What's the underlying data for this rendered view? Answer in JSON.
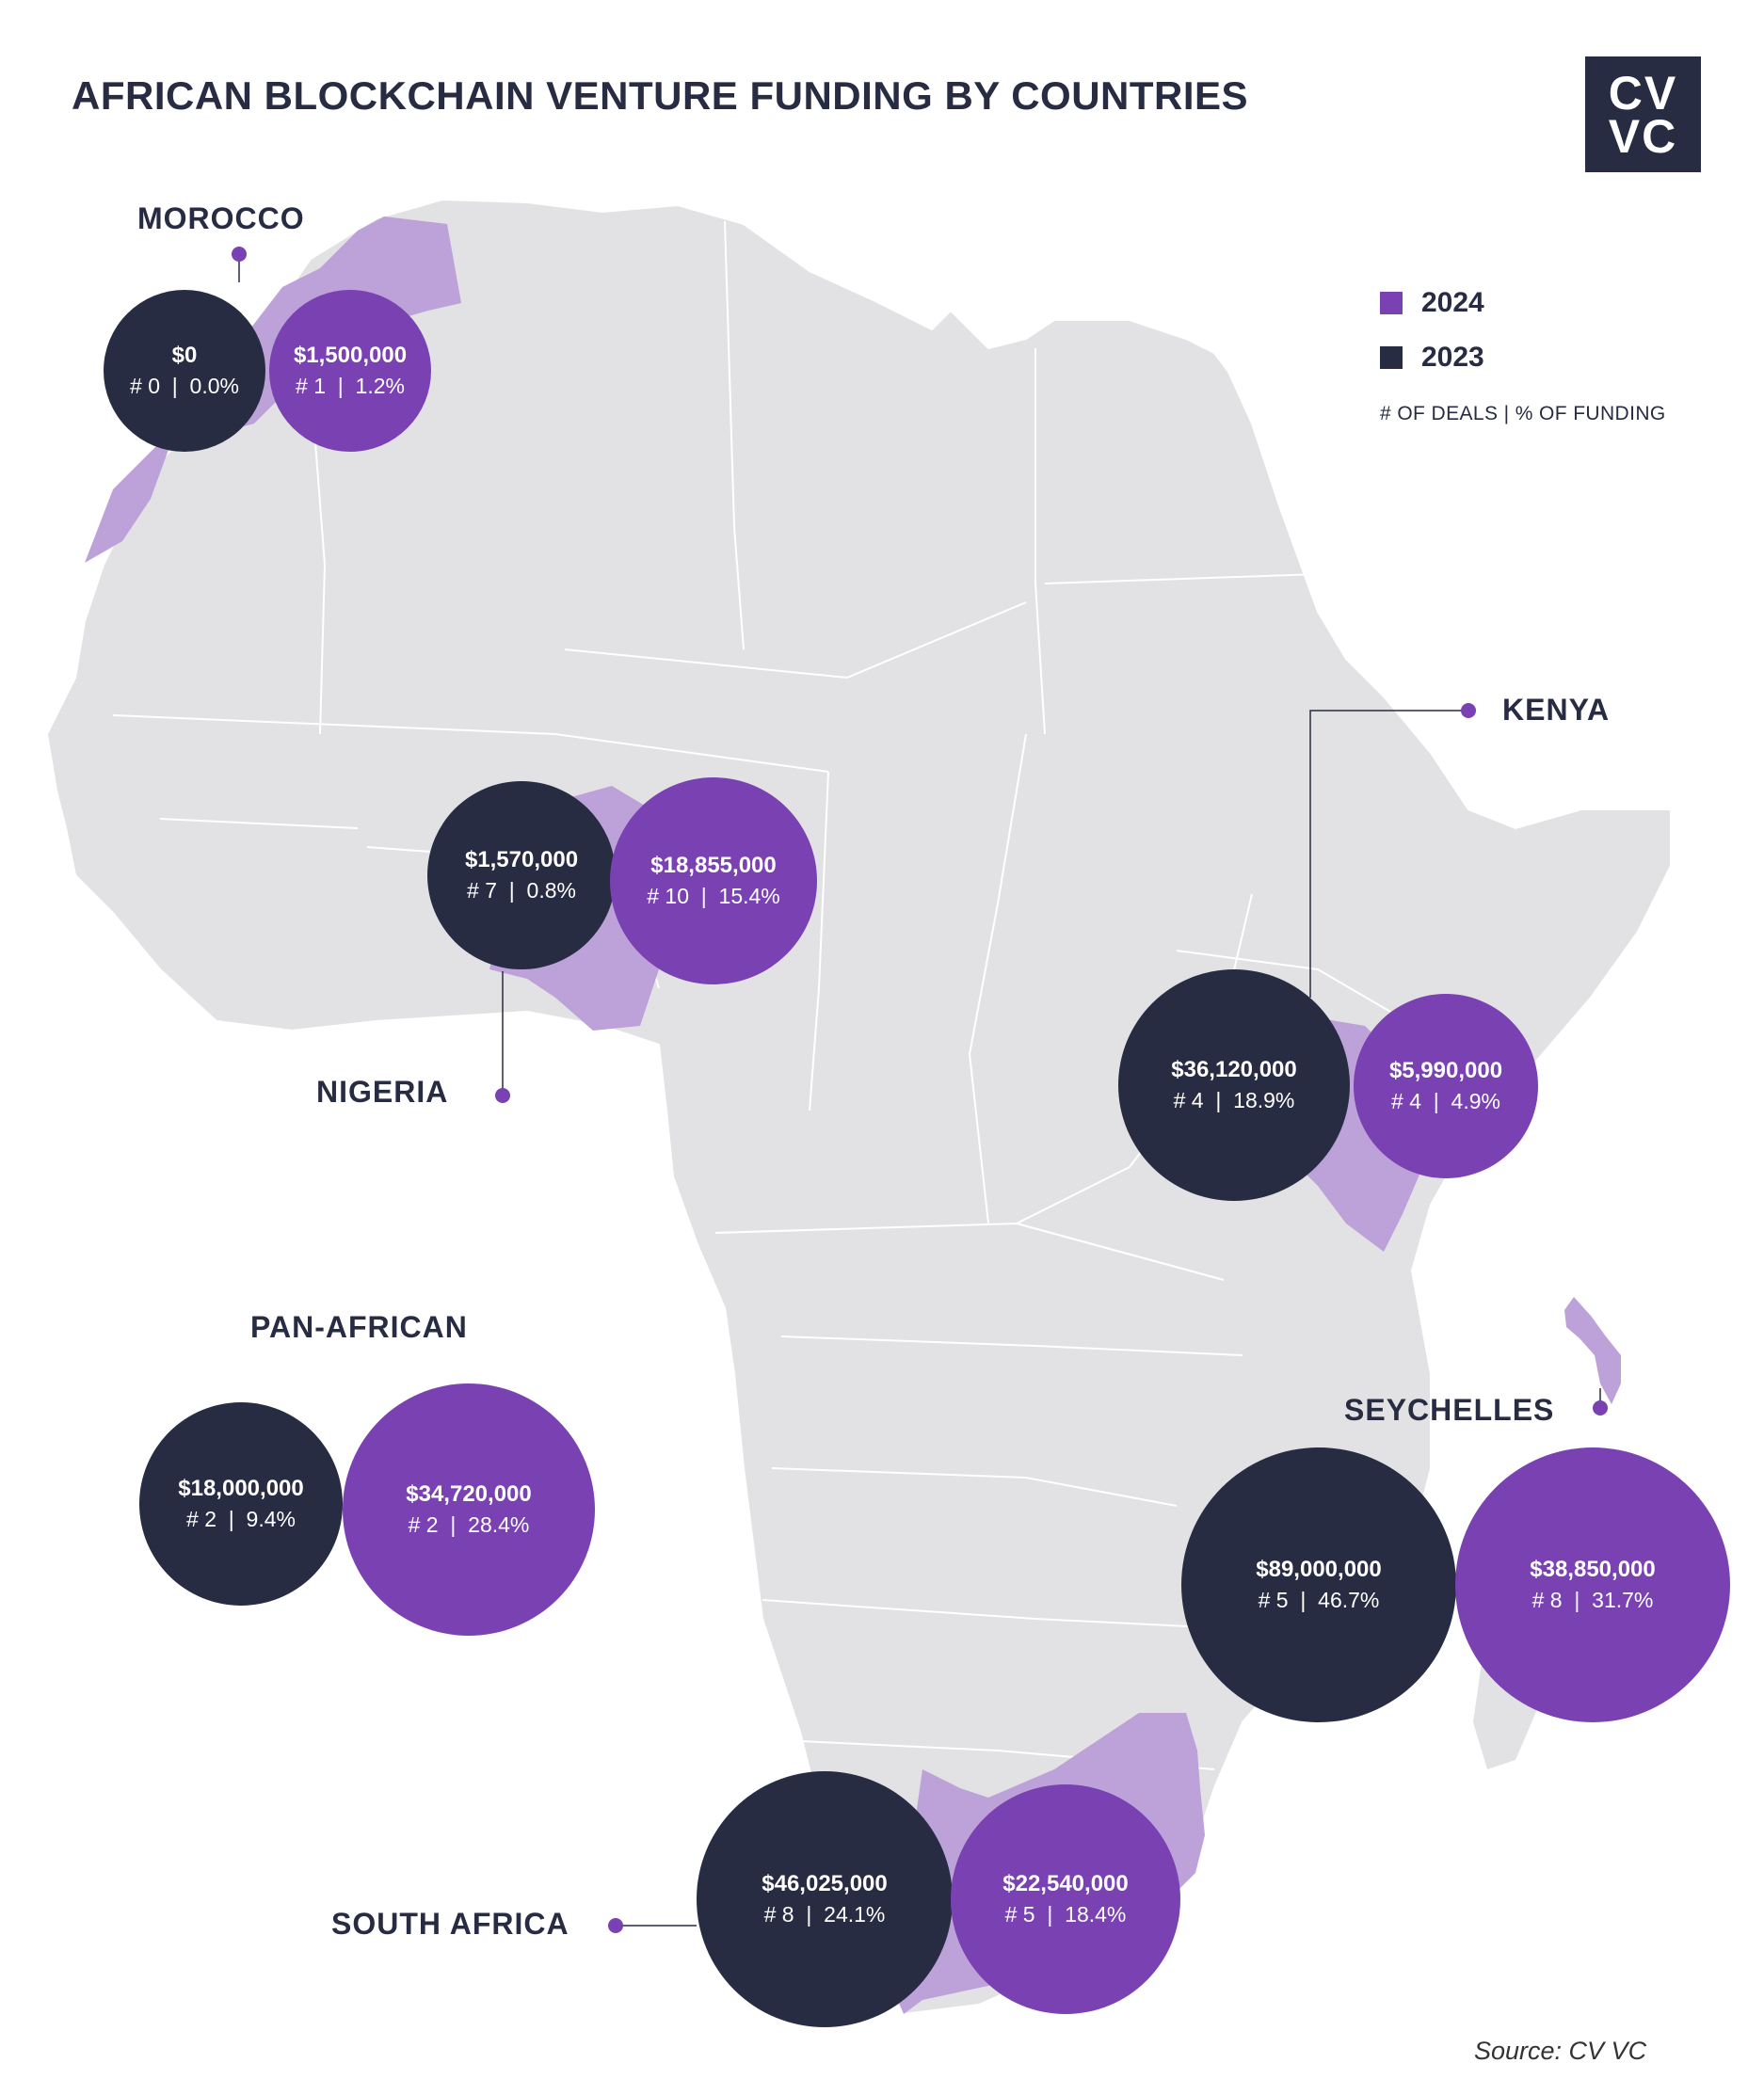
{
  "title": "AFRICAN BLOCKCHAIN VENTURE FUNDING BY COUNTRIES",
  "logo": {
    "line1": "CV",
    "line2": "VC"
  },
  "legend": {
    "items": [
      {
        "label": "2024",
        "color": "#7a41b3"
      },
      {
        "label": "2023",
        "color": "#272c43"
      }
    ],
    "note": "# OF DEALS | % OF FUNDING"
  },
  "colors": {
    "land": "#e2e2e4",
    "highlight": "#bca2d9",
    "year_2024": "#7a41b3",
    "year_2023": "#272c43"
  },
  "countries": {
    "morocco": {
      "name": "MOROCCO",
      "y2023": {
        "amount": "$0",
        "deals": "# 0",
        "share": "0.0%"
      },
      "y2024": {
        "amount": "$1,500,000",
        "deals": "# 1",
        "share": "1.2%"
      }
    },
    "nigeria": {
      "name": "NIGERIA",
      "y2023": {
        "amount": "$1,570,000",
        "deals": "# 7",
        "share": "0.8%"
      },
      "y2024": {
        "amount": "$18,855,000",
        "deals": "# 10",
        "share": "15.4%"
      }
    },
    "kenya": {
      "name": "KENYA",
      "y2023": {
        "amount": "$36,120,000",
        "deals": "# 4",
        "share": "18.9%"
      },
      "y2024": {
        "amount": "$5,990,000",
        "deals": "# 4",
        "share": "4.9%"
      }
    },
    "pan_african": {
      "name": "PAN-AFRICAN",
      "y2023": {
        "amount": "$18,000,000",
        "deals": "# 2",
        "share": "9.4%"
      },
      "y2024": {
        "amount": "$34,720,000",
        "deals": "# 2",
        "share": "28.4%"
      }
    },
    "seychelles": {
      "name": "SEYCHELLES",
      "y2023": {
        "amount": "$89,000,000",
        "deals": "# 5",
        "share": "46.7%"
      },
      "y2024": {
        "amount": "$38,850,000",
        "deals": "# 8",
        "share": "31.7%"
      }
    },
    "south_africa": {
      "name": "SOUTH AFRICA",
      "y2023": {
        "amount": "$46,025,000",
        "deals": "# 8",
        "share": "24.1%"
      },
      "y2024": {
        "amount": "$22,540,000",
        "deals": "# 5",
        "share": "18.4%"
      }
    }
  },
  "source": "Source: CV VC"
}
